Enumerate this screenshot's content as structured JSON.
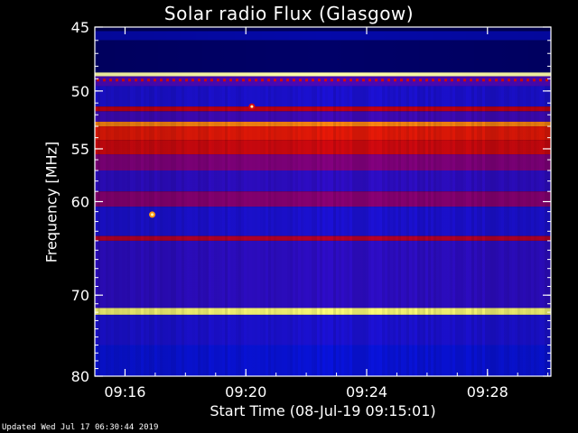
{
  "footer": {
    "updated": "Updated Wed Jul 17 06:30:44 2019"
  },
  "colors": {
    "background": "#000000",
    "axis": "#ffffff",
    "low": "#0000c8",
    "high": "#ff2000",
    "peak": "#ffff60"
  },
  "chart_data": {
    "type": "heatmap",
    "title": "Solar radio Flux (Glasgow)",
    "xlabel": "Start Time (08-Jul-19 09:15:01)",
    "ylabel": "Frequency [MHz]",
    "x_ticks": [
      "09:16",
      "09:20",
      "09:24",
      "09:28"
    ],
    "x_tick_values_min": [
      16,
      20,
      24,
      28
    ],
    "xlim_min": [
      15.0,
      30.1
    ],
    "y_ticks": [
      45,
      50,
      55,
      60,
      70,
      80
    ],
    "ylim": [
      45,
      80
    ],
    "y_scale": "log",
    "colormap": "black-blue-red-yellow-white",
    "bands": [
      {
        "freq_from": 45.3,
        "freq_to": 46.0,
        "level": 0.18
      },
      {
        "freq_from": 46.0,
        "freq_to": 48.5,
        "level": 0.08
      },
      {
        "freq_from": 48.5,
        "freq_to": 48.8,
        "level": 0.95
      },
      {
        "freq_from": 48.8,
        "freq_to": 49.6,
        "level": 0.35
      },
      {
        "freq_from": 49.6,
        "freq_to": 51.3,
        "level": 0.3
      },
      {
        "freq_from": 51.3,
        "freq_to": 51.7,
        "level": 0.52
      },
      {
        "freq_from": 51.7,
        "freq_to": 52.6,
        "level": 0.34
      },
      {
        "freq_from": 52.6,
        "freq_to": 53.0,
        "level": 0.78
      },
      {
        "freq_from": 53.0,
        "freq_to": 54.2,
        "level": 0.6
      },
      {
        "freq_from": 54.2,
        "freq_to": 55.5,
        "level": 0.55
      },
      {
        "freq_from": 55.5,
        "freq_to": 57.0,
        "level": 0.42
      },
      {
        "freq_from": 57.0,
        "freq_to": 59.0,
        "level": 0.32
      },
      {
        "freq_from": 59.0,
        "freq_to": 60.5,
        "level": 0.43
      },
      {
        "freq_from": 60.5,
        "freq_to": 63.5,
        "level": 0.3
      },
      {
        "freq_from": 63.5,
        "freq_to": 64.0,
        "level": 0.5
      },
      {
        "freq_from": 64.0,
        "freq_to": 71.5,
        "level": 0.32
      },
      {
        "freq_from": 71.5,
        "freq_to": 72.3,
        "level": 0.92
      },
      {
        "freq_from": 72.3,
        "freq_to": 76.0,
        "level": 0.3
      },
      {
        "freq_from": 76.0,
        "freq_to": 80.0,
        "level": 0.27
      }
    ],
    "spots": [
      {
        "time_min": 16.9,
        "freq": 61.3,
        "level": 0.8
      },
      {
        "time_min": 20.2,
        "freq": 51.3,
        "level": 0.55
      }
    ],
    "grid": false
  }
}
